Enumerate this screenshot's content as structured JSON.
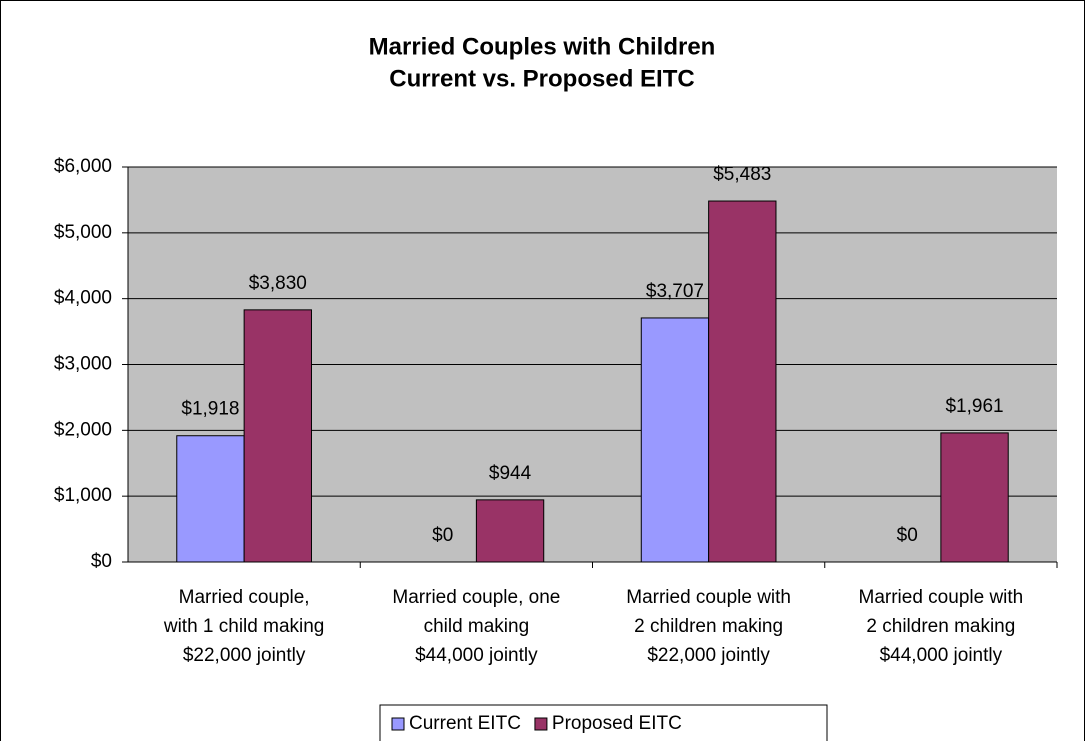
{
  "chart_data": {
    "type": "bar",
    "title": [
      "Married Couples with Children",
      "Current vs. Proposed EITC"
    ],
    "categories": [
      [
        "Married couple,",
        "with 1 child making",
        "$22,000 jointly"
      ],
      [
        "Married couple, one",
        "child making",
        "$44,000 jointly"
      ],
      [
        "Married couple with",
        "2 children making",
        "$22,000 jointly"
      ],
      [
        "Married couple with",
        "2 children making",
        "$44,000 jointly"
      ]
    ],
    "series": [
      {
        "name": "Current EITC",
        "color": "#9999ff",
        "values": [
          1918,
          0,
          3707,
          0
        ],
        "value_labels": [
          "$1,918",
          "$0",
          "$3,707",
          "$0"
        ]
      },
      {
        "name": "Proposed EITC",
        "color": "#993366",
        "values": [
          3830,
          944,
          5483,
          1961
        ],
        "value_labels": [
          "$3,830",
          "$944",
          "$5,483",
          "$1,961"
        ]
      }
    ],
    "ylim": [
      0,
      6000
    ],
    "yticks": [
      {
        "value": 0,
        "label": "$0"
      },
      {
        "value": 1000,
        "label": "$1,000"
      },
      {
        "value": 2000,
        "label": "$2,000"
      },
      {
        "value": 3000,
        "label": "$3,000"
      },
      {
        "value": 4000,
        "label": "$4,000"
      },
      {
        "value": 5000,
        "label": "$5,000"
      },
      {
        "value": 6000,
        "label": "$6,000"
      }
    ],
    "grid": true,
    "legend": "bottom"
  }
}
